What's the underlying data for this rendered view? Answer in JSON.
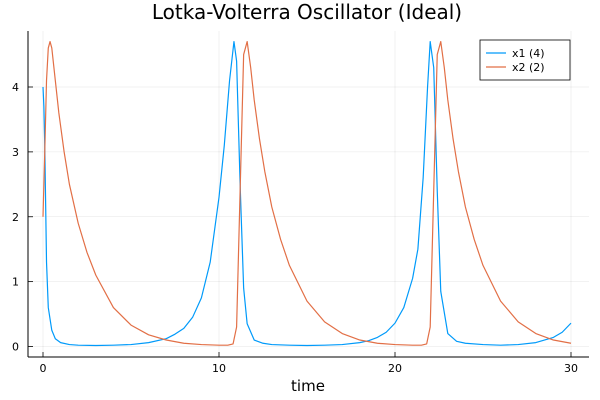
{
  "chart_data": {
    "type": "line",
    "title": "Lotka-Volterra Oscillator (Ideal)",
    "xlabel": "time",
    "ylabel": "",
    "xlim": [
      0,
      30
    ],
    "ylim": [
      0,
      4.7
    ],
    "xticks": [
      0,
      10,
      20,
      30
    ],
    "yticks": [
      0,
      1,
      2,
      3,
      4
    ],
    "grid": true,
    "legend_position": "top-right",
    "series": [
      {
        "name": "x1 (4)",
        "color": "#009AFA",
        "x": [
          0,
          0.05,
          0.1,
          0.15,
          0.2,
          0.3,
          0.5,
          0.7,
          1.0,
          1.5,
          2,
          3,
          4,
          5,
          6,
          7,
          7.5,
          8,
          8.5,
          9,
          9.5,
          10,
          10.3,
          10.6,
          10.85,
          11.0,
          11.2,
          11.4,
          11.6,
          12,
          12.5,
          13,
          14,
          15,
          16,
          17,
          18,
          18.5,
          19,
          19.5,
          20,
          20.5,
          21,
          21.3,
          21.6,
          21.85,
          22.0,
          22.2,
          22.4,
          22.6,
          23,
          23.5,
          24,
          25,
          26,
          27,
          28,
          29,
          29.5,
          30
        ],
        "y": [
          4.0,
          3.7,
          3.1,
          2.2,
          1.3,
          0.6,
          0.25,
          0.12,
          0.06,
          0.03,
          0.02,
          0.015,
          0.02,
          0.03,
          0.06,
          0.12,
          0.19,
          0.28,
          0.45,
          0.75,
          1.3,
          2.3,
          3.1,
          4.1,
          4.7,
          4.4,
          2.5,
          0.9,
          0.35,
          0.1,
          0.05,
          0.03,
          0.02,
          0.015,
          0.02,
          0.03,
          0.06,
          0.09,
          0.14,
          0.22,
          0.36,
          0.6,
          1.05,
          1.5,
          2.6,
          4.0,
          4.7,
          4.3,
          2.4,
          0.85,
          0.2,
          0.08,
          0.05,
          0.03,
          0.02,
          0.03,
          0.06,
          0.14,
          0.22,
          0.36
        ]
      },
      {
        "name": "x2 (2)",
        "color": "#E26F46",
        "x": [
          0,
          0.1,
          0.2,
          0.3,
          0.4,
          0.5,
          0.7,
          0.9,
          1.2,
          1.5,
          2,
          2.5,
          3,
          4,
          5,
          6,
          7,
          8,
          9,
          10,
          10.5,
          10.8,
          11.0,
          11.2,
          11.4,
          11.6,
          11.8,
          12.0,
          12.3,
          12.6,
          13,
          13.5,
          14,
          15,
          16,
          17,
          18,
          19,
          20,
          21,
          21.5,
          21.8,
          22.0,
          22.2,
          22.4,
          22.6,
          22.8,
          23.0,
          23.3,
          23.6,
          24,
          24.5,
          25,
          26,
          27,
          28,
          29,
          30
        ],
        "y": [
          2.0,
          3.0,
          4.1,
          4.6,
          4.7,
          4.6,
          4.1,
          3.6,
          3.0,
          2.5,
          1.9,
          1.45,
          1.1,
          0.6,
          0.33,
          0.18,
          0.1,
          0.05,
          0.03,
          0.02,
          0.02,
          0.04,
          0.3,
          2.4,
          4.5,
          4.7,
          4.3,
          3.8,
          3.2,
          2.7,
          2.15,
          1.65,
          1.25,
          0.7,
          0.38,
          0.2,
          0.1,
          0.05,
          0.03,
          0.02,
          0.02,
          0.04,
          0.3,
          2.4,
          4.5,
          4.7,
          4.3,
          3.8,
          3.2,
          2.7,
          2.15,
          1.65,
          1.25,
          0.7,
          0.38,
          0.2,
          0.1,
          0.05
        ]
      }
    ]
  }
}
